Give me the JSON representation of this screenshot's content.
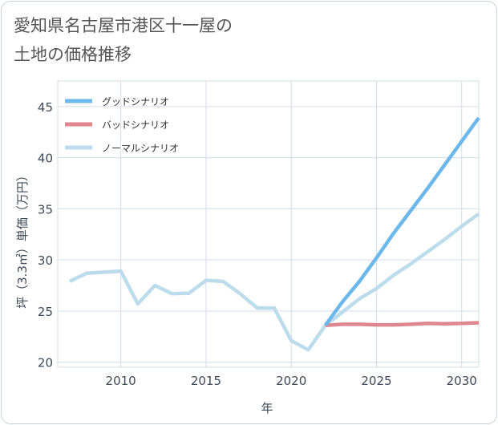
{
  "title_line1": "愛知県名古屋市港区十一屋の",
  "title_line2": "土地の価格推移",
  "chart_data": {
    "type": "line",
    "xlabel": "年",
    "ylabel": "坪（3.3㎡）単価（万円）",
    "xlim": [
      2006.3,
      2031
    ],
    "ylim": [
      19.5,
      47.5
    ],
    "xticks": [
      2010,
      2015,
      2020,
      2025,
      2030
    ],
    "yticks": [
      20,
      25,
      30,
      35,
      40,
      45
    ],
    "grid": true,
    "legend_position": "top-left",
    "series": [
      {
        "name": "グッドシナリオ",
        "color": "#6cb8ea",
        "x": [
          2022,
          2023,
          2024,
          2025,
          2026,
          2027,
          2028,
          2029,
          2030,
          2031
        ],
        "y": [
          23.6,
          25.9,
          27.9,
          30.2,
          32.6,
          34.8,
          37.0,
          39.3,
          41.6,
          43.9
        ]
      },
      {
        "name": "バッドシナリオ",
        "color": "#e0868f",
        "x": [
          2022,
          2023,
          2024,
          2025,
          2026,
          2027,
          2028,
          2029,
          2030,
          2031
        ],
        "y": [
          23.6,
          23.7,
          23.7,
          23.65,
          23.65,
          23.7,
          23.8,
          23.75,
          23.8,
          23.85
        ]
      },
      {
        "name": "ノーマルシナリオ",
        "color": "#bcdcec",
        "x": [
          2007,
          2008,
          2009,
          2010,
          2011,
          2012,
          2013,
          2014,
          2015,
          2016,
          2017,
          2018,
          2019,
          2020,
          2021,
          2022,
          2023,
          2024,
          2025,
          2026,
          2027,
          2028,
          2029,
          2030,
          2031
        ],
        "y": [
          27.9,
          28.7,
          28.8,
          28.9,
          25.7,
          27.5,
          26.7,
          26.75,
          28.0,
          27.9,
          26.7,
          25.3,
          25.3,
          22.1,
          21.2,
          23.6,
          24.9,
          26.2,
          27.2,
          28.5,
          29.6,
          30.8,
          32.0,
          33.3,
          34.5
        ]
      }
    ]
  }
}
